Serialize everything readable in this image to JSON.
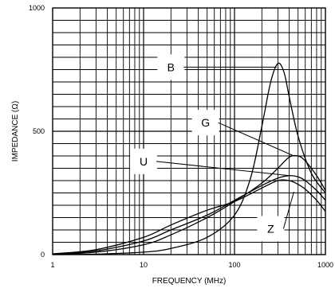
{
  "chart_data": {
    "type": "line",
    "title": "",
    "xlabel": "FREQUENCY (MHz)",
    "ylabel": "IMPEDANCE (Ω)",
    "xscale": "log",
    "xlim": [
      1,
      1000
    ],
    "ylim": [
      0,
      1000
    ],
    "grid": true,
    "x_tick_labels": [
      "1",
      "10",
      "100",
      "1000"
    ],
    "y_tick_labels": [
      "0",
      "500",
      "1000"
    ],
    "series": [
      {
        "name": "B",
        "x": [
          1,
          3,
          10,
          20,
          50,
          100,
          150,
          200,
          250,
          300,
          350,
          400,
          500,
          700,
          1000
        ],
        "values": [
          0,
          2,
          10,
          25,
          70,
          160,
          310,
          520,
          700,
          775,
          740,
          640,
          480,
          330,
          250
        ]
      },
      {
        "name": "G",
        "x": [
          1,
          3,
          10,
          20,
          50,
          100,
          200,
          300,
          400,
          500,
          600,
          800,
          1000
        ],
        "values": [
          1,
          10,
          40,
          80,
          150,
          215,
          290,
          350,
          395,
          400,
          380,
          320,
          260
        ]
      },
      {
        "name": "U",
        "x": [
          1,
          3,
          10,
          20,
          50,
          100,
          200,
          300,
          400,
          500,
          600,
          800,
          1000
        ],
        "values": [
          2,
          15,
          55,
          100,
          160,
          220,
          280,
          310,
          320,
          315,
          300,
          260,
          220
        ]
      },
      {
        "name": "Z",
        "x": [
          1,
          3,
          10,
          20,
          50,
          100,
          200,
          300,
          400,
          500,
          600,
          800,
          1000
        ],
        "values": [
          3,
          20,
          70,
          120,
          180,
          215,
          270,
          300,
          300,
          285,
          265,
          220,
          175
        ]
      }
    ]
  }
}
